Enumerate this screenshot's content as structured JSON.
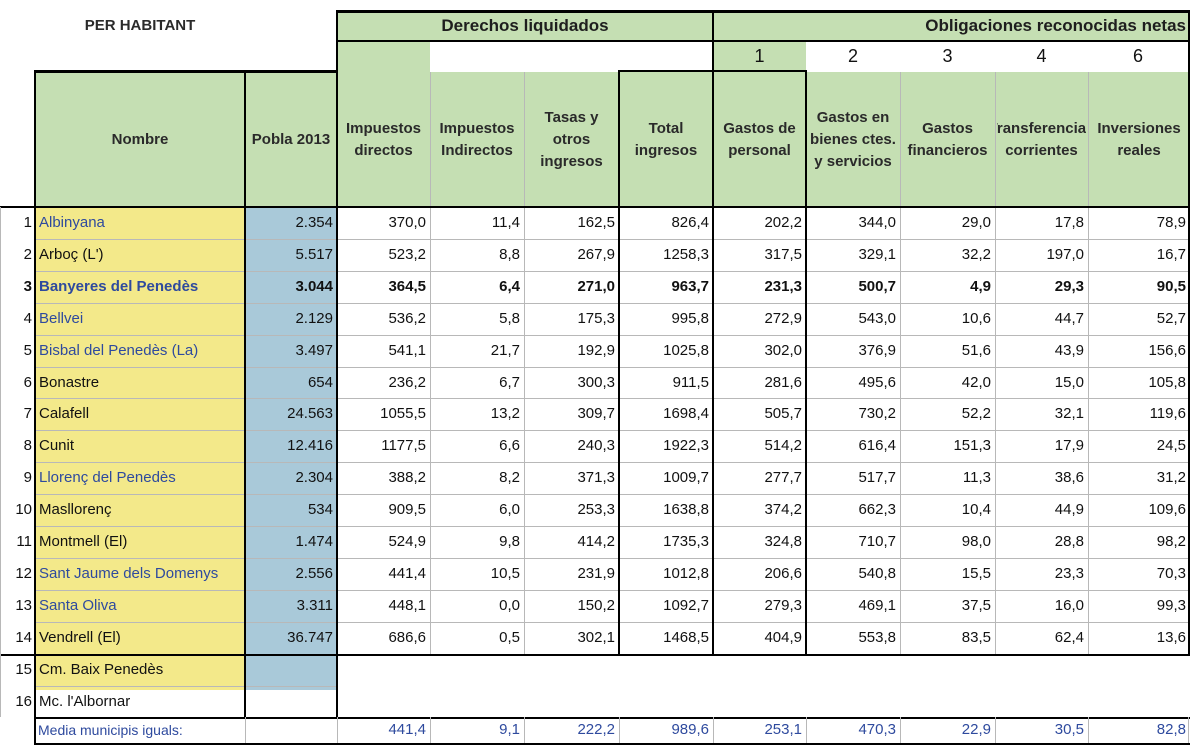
{
  "title": "PER HABITANT",
  "groups": {
    "derechos": "Derechos liquidados",
    "obligaciones": "Obligaciones reconocidas netas"
  },
  "column_numbers": [
    "1",
    "2",
    "3",
    "4",
    "6"
  ],
  "headers": {
    "nombre": "Nombre",
    "pobla": "Pobla 2013",
    "imp_dir": "Impuestos directos",
    "imp_ind": "Impuestos Indirectos",
    "tasas": "Tasas y otros ingresos",
    "total": "Total ingresos",
    "personal": "Gastos de personal",
    "bienes": "Gastos en bienes ctes. y servicios",
    "financieros": "Gastos financieros",
    "transferencias": "Transferencias corrientes",
    "inversiones": "Inversiones reales"
  },
  "rows": [
    {
      "idx": "1",
      "name": "Albinyana",
      "pobla": "2.354",
      "imp_dir": "370,0",
      "imp_ind": "11,4",
      "tasas": "162,5",
      "total": "826,4",
      "personal": "202,2",
      "bienes": "344,0",
      "financieros": "29,0",
      "transferencias": "17,8",
      "inversiones": "78,9",
      "name_color": "blue",
      "bold": false
    },
    {
      "idx": "2",
      "name": "Arboç (L')",
      "pobla": "5.517",
      "imp_dir": "523,2",
      "imp_ind": "8,8",
      "tasas": "267,9",
      "total": "1258,3",
      "personal": "317,5",
      "bienes": "329,1",
      "financieros": "32,2",
      "transferencias": "197,0",
      "inversiones": "16,7",
      "name_color": "black",
      "bold": false
    },
    {
      "idx": "3",
      "name": "Banyeres del Penedès",
      "pobla": "3.044",
      "imp_dir": "364,5",
      "imp_ind": "6,4",
      "tasas": "271,0",
      "total": "963,7",
      "personal": "231,3",
      "bienes": "500,7",
      "financieros": "4,9",
      "transferencias": "29,3",
      "inversiones": "90,5",
      "name_color": "blue",
      "bold": true
    },
    {
      "idx": "4",
      "name": "Bellvei",
      "pobla": "2.129",
      "imp_dir": "536,2",
      "imp_ind": "5,8",
      "tasas": "175,3",
      "total": "995,8",
      "personal": "272,9",
      "bienes": "543,0",
      "financieros": "10,6",
      "transferencias": "44,7",
      "inversiones": "52,7",
      "name_color": "blue",
      "bold": false
    },
    {
      "idx": "5",
      "name": "Bisbal del Penedès (La)",
      "pobla": "3.497",
      "imp_dir": "541,1",
      "imp_ind": "21,7",
      "tasas": "192,9",
      "total": "1025,8",
      "personal": "302,0",
      "bienes": "376,9",
      "financieros": "51,6",
      "transferencias": "43,9",
      "inversiones": "156,6",
      "name_color": "blue",
      "bold": false
    },
    {
      "idx": "6",
      "name": "Bonastre",
      "pobla": "654",
      "imp_dir": "236,2",
      "imp_ind": "6,7",
      "tasas": "300,3",
      "total": "911,5",
      "personal": "281,6",
      "bienes": "495,6",
      "financieros": "42,0",
      "transferencias": "15,0",
      "inversiones": "105,8",
      "name_color": "black",
      "bold": false
    },
    {
      "idx": "7",
      "name": "Calafell",
      "pobla": "24.563",
      "imp_dir": "1055,5",
      "imp_ind": "13,2",
      "tasas": "309,7",
      "total": "1698,4",
      "personal": "505,7",
      "bienes": "730,2",
      "financieros": "52,2",
      "transferencias": "32,1",
      "inversiones": "119,6",
      "name_color": "black",
      "bold": false
    },
    {
      "idx": "8",
      "name": "Cunit",
      "pobla": "12.416",
      "imp_dir": "1177,5",
      "imp_ind": "6,6",
      "tasas": "240,3",
      "total": "1922,3",
      "personal": "514,2",
      "bienes": "616,4",
      "financieros": "151,3",
      "transferencias": "17,9",
      "inversiones": "24,5",
      "name_color": "black",
      "bold": false
    },
    {
      "idx": "9",
      "name": "Llorenç del Penedès",
      "pobla": "2.304",
      "imp_dir": "388,2",
      "imp_ind": "8,2",
      "tasas": "371,3",
      "total": "1009,7",
      "personal": "277,7",
      "bienes": "517,7",
      "financieros": "11,3",
      "transferencias": "38,6",
      "inversiones": "31,2",
      "name_color": "blue",
      "bold": false
    },
    {
      "idx": "10",
      "name": "Masllorenç",
      "pobla": "534",
      "imp_dir": "909,5",
      "imp_ind": "6,0",
      "tasas": "253,3",
      "total": "1638,8",
      "personal": "374,2",
      "bienes": "662,3",
      "financieros": "10,4",
      "transferencias": "44,9",
      "inversiones": "109,6",
      "name_color": "black",
      "bold": false
    },
    {
      "idx": "11",
      "name": "Montmell (El)",
      "pobla": "1.474",
      "imp_dir": "524,9",
      "imp_ind": "9,8",
      "tasas": "414,2",
      "total": "1735,3",
      "personal": "324,8",
      "bienes": "710,7",
      "financieros": "98,0",
      "transferencias": "28,8",
      "inversiones": "98,2",
      "name_color": "black",
      "bold": false
    },
    {
      "idx": "12",
      "name": "Sant Jaume dels Domenys",
      "pobla": "2.556",
      "imp_dir": "441,4",
      "imp_ind": "10,5",
      "tasas": "231,9",
      "total": "1012,8",
      "personal": "206,6",
      "bienes": "540,8",
      "financieros": "15,5",
      "transferencias": "23,3",
      "inversiones": "70,3",
      "name_color": "blue",
      "bold": false
    },
    {
      "idx": "13",
      "name": "Santa Oliva",
      "pobla": "3.311",
      "imp_dir": "448,1",
      "imp_ind": "0,0",
      "tasas": "150,2",
      "total": "1092,7",
      "personal": "279,3",
      "bienes": "469,1",
      "financieros": "37,5",
      "transferencias": "16,0",
      "inversiones": "99,3",
      "name_color": "blue",
      "bold": false
    },
    {
      "idx": "14",
      "name": "Vendrell (El)",
      "pobla": "36.747",
      "imp_dir": "686,6",
      "imp_ind": "0,5",
      "tasas": "302,1",
      "total": "1468,5",
      "personal": "404,9",
      "bienes": "553,8",
      "financieros": "83,5",
      "transferencias": "62,4",
      "inversiones": "13,6",
      "name_color": "black",
      "bold": false
    }
  ],
  "extra_rows": [
    {
      "idx": "15",
      "name": "Cm. Baix Penedès"
    },
    {
      "idx": "16",
      "name": "Mc. l'Albornar"
    }
  ],
  "media": {
    "label": "Media municipis iguals:",
    "imp_dir": "441,4",
    "imp_ind": "9,1",
    "tasas": "222,2",
    "total": "989,6",
    "personal": "253,1",
    "bienes": "470,3",
    "financieros": "22,9",
    "transferencias": "30,5",
    "inversiones": "82,8"
  }
}
